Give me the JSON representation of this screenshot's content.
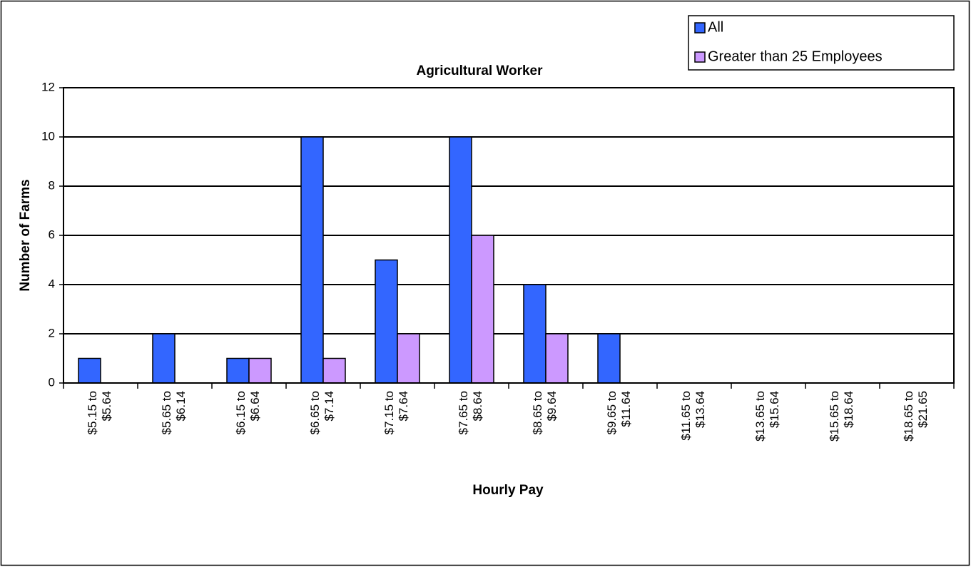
{
  "chart_data": {
    "type": "bar",
    "title": "Agricultural Worker",
    "x_label": "Hourly Pay",
    "y_label": "Number of Farms",
    "categories": [
      "$5.15 to $5.64",
      "$5.65 to $6.14",
      "$6.15 to $6.64",
      "$6.65 to $7.14",
      "$7.15 to $7.64",
      "$7.65 to $8.64",
      "$8.65 to $9.64",
      "$9.65 to $11.64",
      "$11.65 to $13.64",
      "$13.65 to $15.64",
      "$15.65 to $18.64",
      "$18.65 to $21.65"
    ],
    "series": [
      {
        "name": "All",
        "color": "#3366ff",
        "values": [
          1,
          2,
          1,
          10,
          5,
          10,
          4,
          2,
          0,
          0,
          0,
          0
        ]
      },
      {
        "name": "Greater than 25 Employees",
        "color": "#cc99ff",
        "values": [
          0,
          0,
          1,
          1,
          2,
          6,
          2,
          0,
          0,
          0,
          0,
          0
        ]
      }
    ],
    "ylim": [
      0,
      12
    ],
    "yticks": [
      0,
      2,
      4,
      6,
      8,
      10,
      12
    ],
    "grid": true,
    "legend": "top-right"
  }
}
